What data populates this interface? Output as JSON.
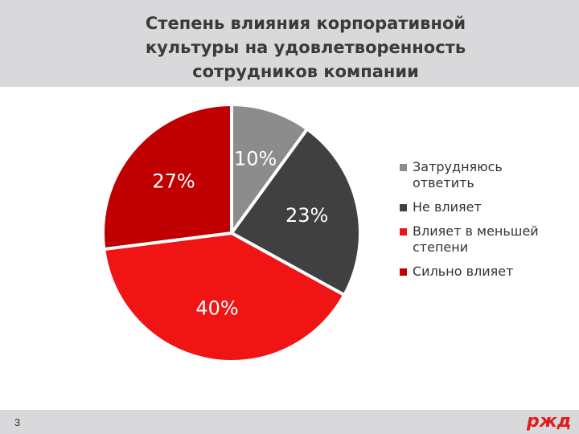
{
  "chart_data": {
    "type": "pie",
    "title": "Степень влияния корпоративной\nкультуры на удовлетворенность\nсотрудников компании",
    "categories": [
      "Затрудняюсь ответить",
      "Не влияет",
      "Влияет в меньшей степени",
      "Сильно влияет"
    ],
    "values": [
      10,
      23,
      40,
      27
    ],
    "value_labels": [
      "10%",
      "23%",
      "40%",
      "27%"
    ],
    "colors": [
      "#8c8c8c",
      "#404040",
      "#f01414",
      "#c00000"
    ],
    "legend": "right"
  },
  "footer": {
    "page_number": "3",
    "logo": "ржд"
  }
}
